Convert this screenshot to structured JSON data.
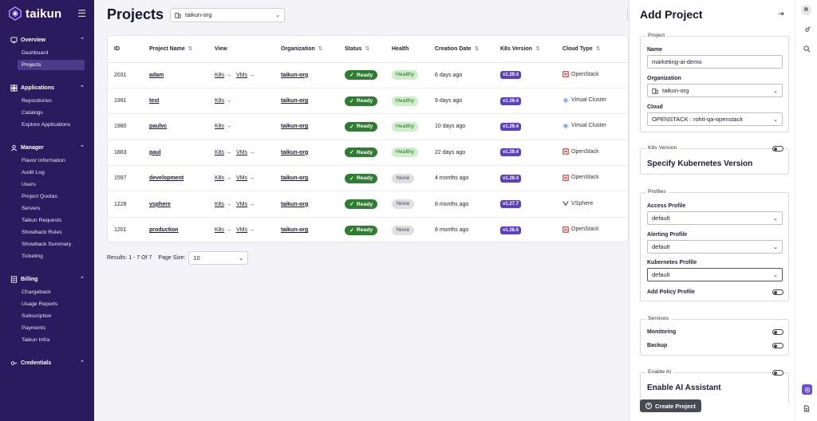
{
  "brand": {
    "name": "taikun"
  },
  "sidebar": {
    "groups": [
      {
        "label": "Overview",
        "items": [
          "Dashboard",
          "Projects"
        ]
      },
      {
        "label": "Applications",
        "items": [
          "Repositories",
          "Catalogs",
          "Explore Applications"
        ]
      },
      {
        "label": "Manager",
        "items": [
          "Flavor Information",
          "Audit Log",
          "Users",
          "Project Quotas",
          "Servers",
          "Taikun Requests",
          "Showback Rules",
          "Showback Summary",
          "Ticketing"
        ]
      },
      {
        "label": "Billing",
        "items": [
          "Chargeback",
          "Usage Reports",
          "Subscription",
          "Payments",
          "Taikun Infra"
        ]
      },
      {
        "label": "Credentials",
        "items": []
      }
    ],
    "active_item": "Projects"
  },
  "page": {
    "title": "Projects",
    "org_select": "taikun-org"
  },
  "table": {
    "headers": [
      "ID",
      "Project Name",
      "View",
      "Organization",
      "Status",
      "Health",
      "Creation Date",
      "K8s Version",
      "Cloud Type"
    ],
    "rows": [
      {
        "id": "2031",
        "name": "adam",
        "views": [
          "K8s",
          "VMs"
        ],
        "org": "taikun-org",
        "status": "Ready",
        "health": "Healthy",
        "created": "6 days ago",
        "k8s": "v1.29.4",
        "cloud": "OpenStack"
      },
      {
        "id": "1991",
        "name": "test",
        "views": [
          "K8s"
        ],
        "org": "taikun-org",
        "status": "Ready",
        "health": "Healthy",
        "created": "9 days ago",
        "k8s": "v1.29.4",
        "cloud": "Virtual Cluster"
      },
      {
        "id": "1980",
        "name": "paulvc",
        "views": [
          "K8s"
        ],
        "org": "taikun-org",
        "status": "Ready",
        "health": "Healthy",
        "created": "10 days ago",
        "k8s": "v1.29.4",
        "cloud": "Virtual Cluster"
      },
      {
        "id": "1883",
        "name": "paul",
        "views": [
          "K8s",
          "VMs"
        ],
        "org": "taikun-org",
        "status": "Ready",
        "health": "Healthy",
        "created": "22 days ago",
        "k8s": "v1.29.4",
        "cloud": "OpenStack"
      },
      {
        "id": "1597",
        "name": "development",
        "views": [
          "K8s",
          "VMs"
        ],
        "org": "taikun-org",
        "status": "Ready",
        "health": "None",
        "created": "4 months ago",
        "k8s": "v1.29.4",
        "cloud": "OpenStack"
      },
      {
        "id": "1228",
        "name": "vsphere",
        "views": [
          "K8s",
          "VMs"
        ],
        "org": "taikun-org",
        "status": "Ready",
        "health": "None",
        "created": "8 months ago",
        "k8s": "v1.27.7",
        "cloud": "VSphere"
      },
      {
        "id": "1201",
        "name": "production",
        "views": [
          "K8s",
          "VMs"
        ],
        "org": "taikun-org",
        "status": "Ready",
        "health": "None",
        "created": "8 months ago",
        "k8s": "v1.28.6",
        "cloud": "OpenStack"
      }
    ]
  },
  "pager": {
    "results": "Results: 1 - 7 Of 7",
    "page_size_label": "Page Size:",
    "page_size": "10"
  },
  "drawer": {
    "title": "Add Project",
    "project": {
      "legend": "Project",
      "name_label": "Name",
      "name_value": "marketing-ai-demo",
      "org_label": "Organization",
      "org_value": "taikun-org",
      "cloud_label": "Cloud",
      "cloud_value": "OPENSTACK : rohit-qa-openstack"
    },
    "k8s": {
      "legend": "K8s Version",
      "text": "Specify Kubernetes Version"
    },
    "profiles": {
      "legend": "Profiles",
      "access_label": "Access Profile",
      "access_value": "default",
      "alerting_label": "Alerting Profile",
      "alerting_value": "default",
      "k8s_label": "Kubernetes Profile",
      "k8s_value": "default",
      "policy_label": "Add Policy Profile"
    },
    "services": {
      "legend": "Services",
      "monitoring_label": "Monitoring",
      "backup_label": "Backup"
    },
    "ai": {
      "legend": "Enable AI",
      "text": "Enable AI Assistant"
    },
    "create_label": "Create Project"
  },
  "rail": {
    "avatar": "R"
  },
  "colors": {
    "sidebar": "#2a1b5e",
    "ready": "#2e7d32",
    "healthy_bg": "#cdeec9",
    "version": "#5b3fc4",
    "create_btn": "#4a4a55",
    "help": "#6a4ce0"
  }
}
